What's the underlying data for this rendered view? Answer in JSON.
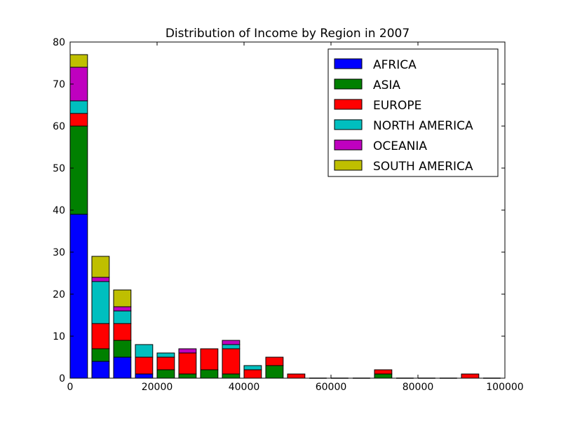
{
  "chart_data": {
    "type": "bar",
    "stacked": true,
    "title": "Distribution of Income by Region in 2007",
    "xlabel": "",
    "ylabel": "",
    "xlim": [
      0,
      100000
    ],
    "ylim": [
      0,
      80
    ],
    "xticks": [
      "0",
      "20000",
      "40000",
      "60000",
      "80000",
      "100000"
    ],
    "yticks": [
      "0",
      "10",
      "20",
      "30",
      "40",
      "50",
      "60",
      "70",
      "80"
    ],
    "bin_width": 5000,
    "bins": [
      0,
      5000,
      10000,
      15000,
      20000,
      25000,
      30000,
      35000,
      40000,
      45000,
      50000,
      55000,
      60000,
      65000,
      70000,
      75000,
      80000,
      85000,
      90000,
      95000
    ],
    "legend_position": "top-right",
    "grid": false,
    "series": [
      {
        "name": "AFRICA",
        "color": "#0000ff",
        "values": [
          39,
          4,
          5,
          1,
          0,
          0,
          0,
          0,
          0,
          0,
          0,
          0,
          0,
          0,
          0,
          0,
          0,
          0,
          0,
          0
        ]
      },
      {
        "name": "ASIA",
        "color": "#008000",
        "values": [
          21,
          3,
          4,
          0,
          2,
          1,
          2,
          1,
          0,
          3,
          0,
          0,
          0,
          0,
          1,
          0,
          0,
          0,
          0,
          0
        ]
      },
      {
        "name": "EUROPE",
        "color": "#ff0000",
        "values": [
          3,
          6,
          4,
          4,
          3,
          5,
          5,
          6,
          2,
          2,
          1,
          0,
          0,
          0,
          1,
          0,
          0,
          0,
          1,
          0
        ]
      },
      {
        "name": "NORTH AMERICA",
        "color": "#00bfbf",
        "values": [
          3,
          10,
          3,
          3,
          1,
          0,
          0,
          1,
          1,
          0,
          0,
          0,
          0,
          0,
          0,
          0,
          0,
          0,
          0,
          0
        ]
      },
      {
        "name": "OCEANIA",
        "color": "#bf00bf",
        "values": [
          8,
          1,
          1,
          0,
          0,
          1,
          0,
          1,
          0,
          0,
          0,
          0,
          0,
          0,
          0,
          0,
          0,
          0,
          0,
          0
        ]
      },
      {
        "name": "SOUTH AMERICA",
        "color": "#bfbf00",
        "values": [
          3,
          5,
          4,
          0,
          0,
          0,
          0,
          0,
          0,
          0,
          0,
          0,
          0,
          0,
          0,
          0,
          0,
          0,
          0,
          0
        ]
      }
    ]
  }
}
